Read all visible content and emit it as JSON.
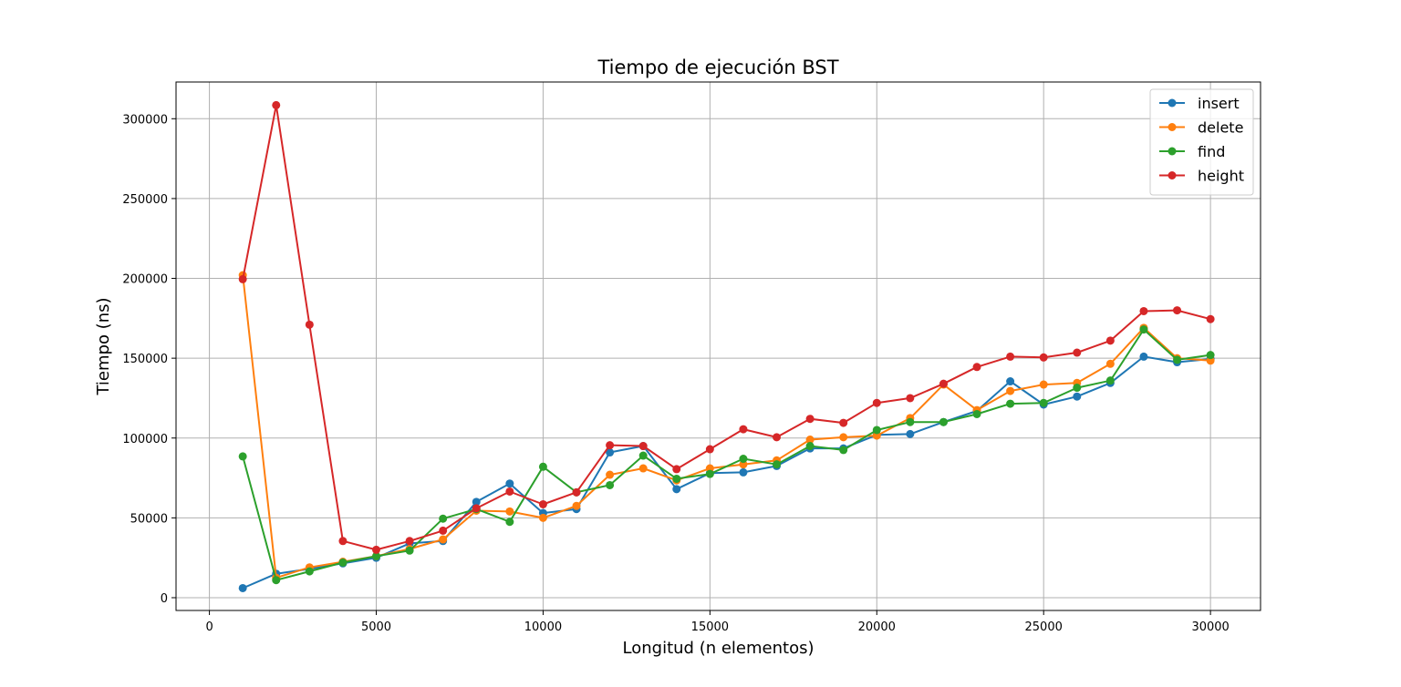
{
  "chart_data": {
    "type": "line",
    "title": "Tiempo de ejecución BST",
    "xlabel": "Longitud (n elementos)",
    "ylabel": "Tiempo (ns)",
    "xlim": [
      -1000,
      31500
    ],
    "ylim": [
      -8000,
      323000
    ],
    "xticks": [
      0,
      5000,
      10000,
      15000,
      20000,
      25000,
      30000
    ],
    "yticks": [
      0,
      50000,
      100000,
      150000,
      200000,
      250000,
      300000
    ],
    "grid": true,
    "legend_position": "top-right",
    "x": [
      1000,
      2000,
      3000,
      4000,
      5000,
      6000,
      7000,
      8000,
      9000,
      10000,
      11000,
      12000,
      13000,
      14000,
      15000,
      16000,
      17000,
      18000,
      19000,
      20000,
      21000,
      22000,
      23000,
      24000,
      25000,
      26000,
      27000,
      28000,
      29000,
      30000
    ],
    "series": [
      {
        "name": "insert",
        "color": "#1f77b4",
        "values": [
          6000,
          15000,
          18000,
          21500,
          25000,
          34000,
          35500,
          60000,
          71500,
          53000,
          55500,
          91000,
          95000,
          68000,
          78000,
          78500,
          82500,
          93500,
          93500,
          102000,
          102500,
          110000,
          117000,
          135500,
          121000,
          126000,
          134500,
          151000,
          147500,
          149500
        ]
      },
      {
        "name": "delete",
        "color": "#ff7f0e",
        "values": [
          202000,
          12500,
          19000,
          22500,
          26000,
          30500,
          36500,
          54500,
          54000,
          50000,
          57500,
          77000,
          81000,
          73500,
          81000,
          83500,
          86000,
          99000,
          100500,
          101500,
          112500,
          133500,
          117500,
          129500,
          133500,
          134500,
          146500,
          169000,
          150000,
          148500
        ]
      },
      {
        "name": "find",
        "color": "#2ca02c",
        "values": [
          88500,
          11000,
          16500,
          22000,
          26000,
          29500,
          49500,
          55500,
          47500,
          82000,
          66000,
          70500,
          89000,
          74500,
          77500,
          87000,
          83500,
          95000,
          92500,
          105000,
          110000,
          110000,
          115000,
          121500,
          122000,
          131500,
          136000,
          168000,
          149000,
          152000
        ]
      },
      {
        "name": "height",
        "color": "#d62728",
        "values": [
          199500,
          308500,
          171000,
          35500,
          30000,
          35500,
          42000,
          56000,
          66500,
          58500,
          66000,
          95500,
          95000,
          80500,
          93000,
          105500,
          100500,
          112000,
          109500,
          122000,
          125000,
          134000,
          144500,
          151000,
          150500,
          153500,
          161000,
          179500,
          180000,
          174500
        ]
      }
    ]
  }
}
